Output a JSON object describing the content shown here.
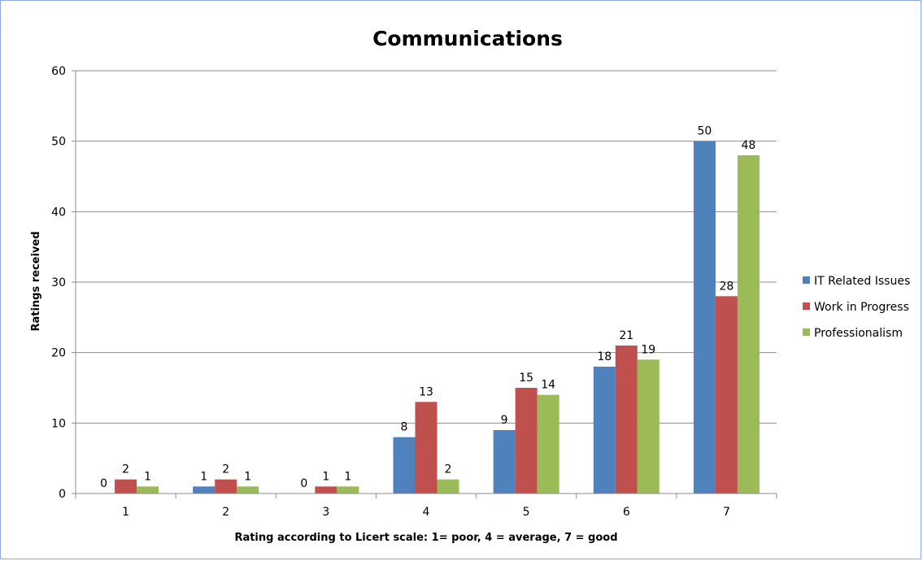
{
  "chart_data": {
    "type": "bar",
    "title": "Communications",
    "xlabel": "Rating according to Licert scale: 1= poor, 4 = average, 7 = good",
    "ylabel": "Ratings received",
    "categories": [
      "1",
      "2",
      "3",
      "4",
      "5",
      "6",
      "7"
    ],
    "ylim": [
      0,
      60
    ],
    "yticks": [
      0,
      10,
      20,
      30,
      40,
      50,
      60
    ],
    "grid": true,
    "legend_position": "right",
    "series": [
      {
        "name": "IT Related Issues",
        "color": "#4f81bd",
        "values": [
          0,
          1,
          0,
          8,
          9,
          18,
          50
        ]
      },
      {
        "name": "Work in Progress",
        "color": "#c0504d",
        "values": [
          2,
          2,
          1,
          13,
          15,
          21,
          28
        ]
      },
      {
        "name": "Professionalism",
        "color": "#9bbb59",
        "values": [
          1,
          1,
          1,
          2,
          14,
          19,
          48
        ]
      }
    ]
  }
}
